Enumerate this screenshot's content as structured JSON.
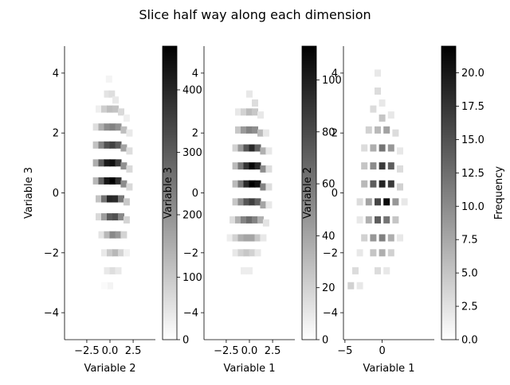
{
  "figure_title": "Slice half way along each dimension",
  "chart_data": [
    {
      "type": "heatmap",
      "xlabel": "Variable 2",
      "ylabel": "Variable 3",
      "xlim": [
        -4.9,
        4.9
      ],
      "ylim": [
        -4.9,
        4.9
      ],
      "xticks": [
        {
          "v": -2.5,
          "label": "−2.5"
        },
        {
          "v": 0,
          "label": "0.0"
        },
        {
          "v": 2.5,
          "label": "2.5"
        }
      ],
      "yticks": [
        {
          "v": -4,
          "label": "−4"
        },
        {
          "v": -2,
          "label": "−2"
        },
        {
          "v": 0,
          "label": "0"
        },
        {
          "v": 2,
          "label": "2"
        },
        {
          "v": 4,
          "label": "4"
        }
      ],
      "colorbar": {
        "ticks": [
          {
            "v": 0,
            "label": "0"
          },
          {
            "v": 100,
            "label": "100"
          },
          {
            "v": 200,
            "label": "200"
          },
          {
            "v": 300,
            "label": "300"
          },
          {
            "v": 400,
            "label": "400"
          }
        ],
        "vmax": 470,
        "label": ""
      },
      "cells": [
        [
          -0.1,
          3.8,
          20
        ],
        [
          -0.3,
          3.3,
          50
        ],
        [
          0.2,
          3.3,
          60
        ],
        [
          0.6,
          3.1,
          40
        ],
        [
          -1.2,
          2.8,
          30
        ],
        [
          -0.6,
          2.8,
          90
        ],
        [
          0.0,
          2.8,
          120
        ],
        [
          0.6,
          2.8,
          110
        ],
        [
          1.2,
          2.7,
          70
        ],
        [
          1.8,
          2.5,
          30
        ],
        [
          -1.5,
          2.2,
          60
        ],
        [
          -0.9,
          2.2,
          150
        ],
        [
          -0.3,
          2.2,
          210
        ],
        [
          0.3,
          2.2,
          230
        ],
        [
          0.9,
          2.2,
          200
        ],
        [
          1.5,
          2.1,
          120
        ],
        [
          2.1,
          2.0,
          40
        ],
        [
          -1.5,
          1.6,
          110
        ],
        [
          -0.9,
          1.6,
          230
        ],
        [
          -0.3,
          1.6,
          320
        ],
        [
          0.3,
          1.6,
          350
        ],
        [
          0.9,
          1.6,
          300
        ],
        [
          1.5,
          1.5,
          170
        ],
        [
          2.1,
          1.4,
          60
        ],
        [
          -1.5,
          1.0,
          150
        ],
        [
          -0.9,
          1.0,
          300
        ],
        [
          -0.3,
          1.0,
          420
        ],
        [
          0.3,
          1.0,
          440
        ],
        [
          0.9,
          1.0,
          360
        ],
        [
          1.5,
          0.9,
          200
        ],
        [
          2.1,
          0.8,
          70
        ],
        [
          -1.5,
          0.4,
          130
        ],
        [
          -0.9,
          0.4,
          290
        ],
        [
          -0.3,
          0.4,
          430
        ],
        [
          0.3,
          0.4,
          470
        ],
        [
          0.9,
          0.4,
          380
        ],
        [
          1.5,
          0.3,
          210
        ],
        [
          2.1,
          0.2,
          70
        ],
        [
          -1.2,
          -0.2,
          110
        ],
        [
          -0.6,
          -0.2,
          260
        ],
        [
          0.0,
          -0.2,
          400
        ],
        [
          0.6,
          -0.2,
          390
        ],
        [
          1.2,
          -0.2,
          250
        ],
        [
          1.8,
          -0.3,
          100
        ],
        [
          -1.2,
          -0.8,
          70
        ],
        [
          -0.6,
          -0.8,
          180
        ],
        [
          0.0,
          -0.8,
          300
        ],
        [
          0.6,
          -0.8,
          320
        ],
        [
          1.2,
          -0.8,
          220
        ],
        [
          1.8,
          -0.9,
          80
        ],
        [
          -0.9,
          -1.4,
          50
        ],
        [
          -0.3,
          -1.4,
          130
        ],
        [
          0.3,
          -1.4,
          220
        ],
        [
          0.9,
          -1.4,
          190
        ],
        [
          1.5,
          -1.4,
          80
        ],
        [
          -0.6,
          -2.0,
          40
        ],
        [
          0.0,
          -2.0,
          100
        ],
        [
          0.6,
          -2.0,
          130
        ],
        [
          1.2,
          -2.0,
          80
        ],
        [
          1.8,
          -2.0,
          25
        ],
        [
          -0.3,
          -2.6,
          40
        ],
        [
          0.3,
          -2.6,
          60
        ],
        [
          0.9,
          -2.6,
          40
        ],
        [
          0.0,
          -3.1,
          20
        ],
        [
          -0.6,
          -3.1,
          10
        ]
      ]
    },
    {
      "type": "heatmap",
      "xlabel": "Variable 1",
      "ylabel": "Variable 3",
      "xlim": [
        -4.9,
        4.9
      ],
      "ylim": [
        -4.9,
        4.9
      ],
      "xticks": [
        {
          "v": -2.5,
          "label": "−2.5"
        },
        {
          "v": 0,
          "label": "0.0"
        },
        {
          "v": 2.5,
          "label": "2.5"
        }
      ],
      "yticks": [
        {
          "v": -4,
          "label": "−4"
        },
        {
          "v": -2,
          "label": "−2"
        },
        {
          "v": 0,
          "label": "0"
        },
        {
          "v": 2,
          "label": "2"
        },
        {
          "v": 4,
          "label": "4"
        }
      ],
      "colorbar": {
        "ticks": [
          {
            "v": 0,
            "label": "0"
          },
          {
            "v": 20,
            "label": "20"
          },
          {
            "v": 40,
            "label": "40"
          },
          {
            "v": 60,
            "label": "60"
          },
          {
            "v": 80,
            "label": "80"
          },
          {
            "v": 100,
            "label": "100"
          }
        ],
        "vmax": 113,
        "label": ""
      },
      "cells": [
        [
          0.0,
          3.3,
          10
        ],
        [
          0.6,
          3.0,
          15
        ],
        [
          -1.2,
          2.7,
          10
        ],
        [
          -0.6,
          2.7,
          20
        ],
        [
          0.0,
          2.7,
          30
        ],
        [
          0.6,
          2.7,
          25
        ],
        [
          1.2,
          2.6,
          10
        ],
        [
          -1.2,
          2.1,
          25
        ],
        [
          -0.6,
          2.1,
          45
        ],
        [
          0.0,
          2.1,
          55
        ],
        [
          0.6,
          2.1,
          50
        ],
        [
          1.2,
          2.0,
          30
        ],
        [
          1.8,
          2.0,
          10
        ],
        [
          -1.5,
          1.5,
          20
        ],
        [
          -0.9,
          1.5,
          45
        ],
        [
          -0.3,
          1.5,
          75
        ],
        [
          0.3,
          1.5,
          95
        ],
        [
          0.9,
          1.5,
          70
        ],
        [
          1.5,
          1.4,
          35
        ],
        [
          2.1,
          1.4,
          10
        ],
        [
          -1.5,
          0.9,
          30
        ],
        [
          -0.9,
          0.9,
          60
        ],
        [
          -0.3,
          0.9,
          90
        ],
        [
          0.3,
          0.9,
          110
        ],
        [
          0.9,
          0.9,
          95
        ],
        [
          1.5,
          0.8,
          50
        ],
        [
          2.1,
          0.8,
          15
        ],
        [
          -1.5,
          0.3,
          30
        ],
        [
          -0.9,
          0.3,
          60
        ],
        [
          -0.3,
          0.3,
          95
        ],
        [
          0.3,
          0.3,
          113
        ],
        [
          0.9,
          0.3,
          105
        ],
        [
          1.5,
          0.2,
          55
        ],
        [
          2.1,
          0.2,
          15
        ],
        [
          -1.5,
          -0.3,
          25
        ],
        [
          -0.9,
          -0.3,
          50
        ],
        [
          -0.3,
          -0.3,
          75
        ],
        [
          0.3,
          -0.3,
          85
        ],
        [
          0.9,
          -0.3,
          70
        ],
        [
          1.5,
          -0.4,
          40
        ],
        [
          2.1,
          -0.4,
          10
        ],
        [
          -1.8,
          -0.9,
          15
        ],
        [
          -1.2,
          -0.9,
          35
        ],
        [
          -0.6,
          -0.9,
          55
        ],
        [
          0.0,
          -0.9,
          65
        ],
        [
          0.6,
          -0.9,
          55
        ],
        [
          1.2,
          -0.9,
          35
        ],
        [
          1.8,
          -1.0,
          12
        ],
        [
          -2.1,
          -1.5,
          8
        ],
        [
          -1.5,
          -1.5,
          20
        ],
        [
          -0.9,
          -1.5,
          35
        ],
        [
          -0.3,
          -1.5,
          40
        ],
        [
          0.3,
          -1.5,
          40
        ],
        [
          0.9,
          -1.5,
          25
        ],
        [
          1.5,
          -1.5,
          10
        ],
        [
          -1.5,
          -2.0,
          10
        ],
        [
          -0.9,
          -2.0,
          20
        ],
        [
          -0.3,
          -2.0,
          25
        ],
        [
          0.3,
          -2.0,
          20
        ],
        [
          0.9,
          -2.0,
          10
        ],
        [
          -0.6,
          -2.6,
          8
        ],
        [
          0.0,
          -2.6,
          8
        ]
      ]
    },
    {
      "type": "heatmap",
      "xlabel": "Variable 1",
      "ylabel": "Variable 2",
      "xlim": [
        -5.2,
        7.0
      ],
      "ylim": [
        -4.9,
        4.9
      ],
      "xticks": [
        {
          "v": -5,
          "label": "−5"
        },
        {
          "v": 0,
          "label": "0"
        }
      ],
      "yticks": [
        {
          "v": -4,
          "label": "−4"
        },
        {
          "v": -2,
          "label": "−2"
        },
        {
          "v": 0,
          "label": "0"
        },
        {
          "v": 2,
          "label": "2"
        },
        {
          "v": 4,
          "label": "4"
        }
      ],
      "colorbar": {
        "ticks": [
          {
            "v": 0,
            "label": "0.0"
          },
          {
            "v": 2.5,
            "label": "2.5"
          },
          {
            "v": 5,
            "label": "5.0"
          },
          {
            "v": 7.5,
            "label": "7.5"
          },
          {
            "v": 10,
            "label": "10.0"
          },
          {
            "v": 12.5,
            "label": "12.5"
          },
          {
            "v": 15,
            "label": "15.0"
          },
          {
            "v": 17.5,
            "label": "17.5"
          },
          {
            "v": 20,
            "label": "20.0"
          }
        ],
        "vmax": 22,
        "label": "Frequency"
      },
      "cells": [
        [
          -0.6,
          4.0,
          2
        ],
        [
          -0.6,
          3.4,
          3
        ],
        [
          0.0,
          3.0,
          2
        ],
        [
          -1.2,
          2.8,
          3
        ],
        [
          0.0,
          2.5,
          5
        ],
        [
          1.2,
          2.6,
          2
        ],
        [
          -1.8,
          2.1,
          4
        ],
        [
          -0.6,
          2.1,
          6
        ],
        [
          0.6,
          2.1,
          8
        ],
        [
          1.8,
          2.0,
          3
        ],
        [
          -2.4,
          1.5,
          3
        ],
        [
          -1.2,
          1.5,
          7
        ],
        [
          0.0,
          1.5,
          12
        ],
        [
          1.2,
          1.5,
          9
        ],
        [
          2.4,
          1.4,
          2
        ],
        [
          -2.4,
          0.9,
          5
        ],
        [
          -1.2,
          0.9,
          10
        ],
        [
          0.0,
          0.9,
          17
        ],
        [
          1.2,
          0.9,
          14
        ],
        [
          2.4,
          0.8,
          3
        ],
        [
          -2.4,
          0.3,
          6
        ],
        [
          -1.2,
          0.3,
          14
        ],
        [
          0.0,
          0.3,
          19
        ],
        [
          1.2,
          0.3,
          17
        ],
        [
          2.4,
          0.2,
          4
        ],
        [
          -3.0,
          -0.3,
          3
        ],
        [
          -1.8,
          -0.3,
          8
        ],
        [
          -0.6,
          -0.3,
          16
        ],
        [
          0.6,
          -0.3,
          21
        ],
        [
          1.8,
          -0.3,
          9
        ],
        [
          3.0,
          -0.3,
          2
        ],
        [
          -3.0,
          -0.9,
          2
        ],
        [
          -1.8,
          -0.9,
          7
        ],
        [
          -0.6,
          -0.9,
          14
        ],
        [
          0.6,
          -0.9,
          12
        ],
        [
          1.8,
          -0.9,
          5
        ],
        [
          -2.4,
          -1.5,
          4
        ],
        [
          -1.2,
          -1.5,
          9
        ],
        [
          0.0,
          -1.5,
          11
        ],
        [
          1.2,
          -1.5,
          7
        ],
        [
          2.4,
          -1.5,
          2
        ],
        [
          -3.0,
          -2.0,
          2
        ],
        [
          -1.2,
          -2.0,
          5
        ],
        [
          0.0,
          -2.0,
          7
        ],
        [
          1.2,
          -2.0,
          4
        ],
        [
          -3.6,
          -2.6,
          3
        ],
        [
          -0.6,
          -2.6,
          3
        ],
        [
          0.6,
          -2.6,
          2
        ],
        [
          -4.2,
          -3.1,
          4
        ],
        [
          -3.0,
          -3.1,
          2
        ]
      ]
    }
  ]
}
